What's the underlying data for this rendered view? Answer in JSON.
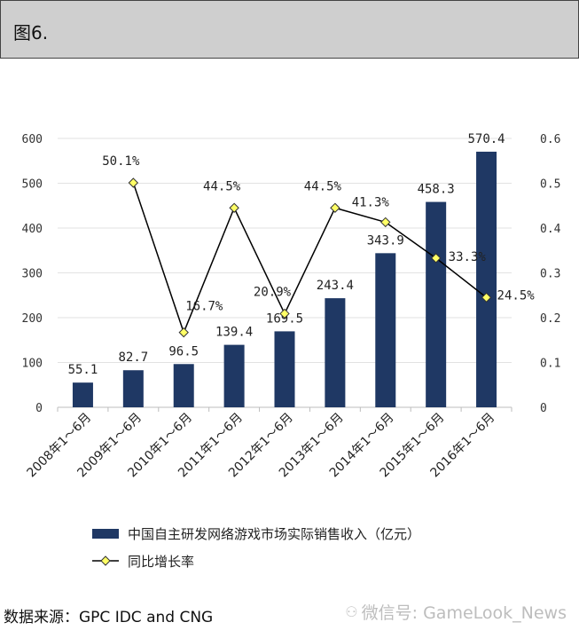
{
  "header": {
    "title": "图6."
  },
  "source": {
    "text": "数据来源：GPC IDC and CNG"
  },
  "watermark": {
    "text": "微信号: GameLook_News",
    "icon": "wechat-icon"
  },
  "colors": {
    "bar": "#1f3864",
    "line": "#000000",
    "marker": "#ffff66",
    "grid": "#e2e2e2"
  },
  "chart_data": {
    "type": "bar",
    "categories": [
      "2008年1～6月",
      "2009年1～6月",
      "2010年1～6月",
      "2011年1～6月",
      "2012年1～6月",
      "2013年1～6月",
      "2014年1～6月",
      "2015年1～6月",
      "2016年1～6月"
    ],
    "series": [
      {
        "name": "中国自主研发网络游戏市场实际销售收入（亿元）",
        "type": "bar",
        "axis": "left",
        "values": [
          55.1,
          82.7,
          96.5,
          139.4,
          169.5,
          243.4,
          343.9,
          458.3,
          570.4
        ],
        "labels": [
          "55.1",
          "82.7",
          "96.5",
          "139.4",
          "169.5",
          "243.4",
          "343.9",
          "458.3",
          "570.4"
        ]
      },
      {
        "name": "同比增长率",
        "type": "line",
        "axis": "right",
        "values": [
          null,
          0.501,
          0.167,
          0.445,
          0.209,
          0.445,
          0.413,
          0.333,
          0.245
        ],
        "labels": [
          "",
          "50.1%",
          "16.7%",
          "44.5%",
          "20.9%",
          "44.5%",
          "41.3%",
          "33.3%",
          "24.5%"
        ]
      }
    ],
    "y_left": {
      "lim": [
        0,
        600
      ],
      "ticks": [
        "0",
        "100",
        "200",
        "300",
        "400",
        "500",
        "600"
      ]
    },
    "y_right": {
      "lim": [
        0,
        0.6
      ],
      "ticks": [
        "0",
        "0.1",
        "0.2",
        "0.3",
        "0.4",
        "0.5",
        "0.6"
      ]
    },
    "grid": true,
    "legend": {
      "position": "bottom",
      "items": [
        "中国自主研发网络游戏市场实际销售收入（亿元）",
        "同比增长率"
      ]
    }
  }
}
